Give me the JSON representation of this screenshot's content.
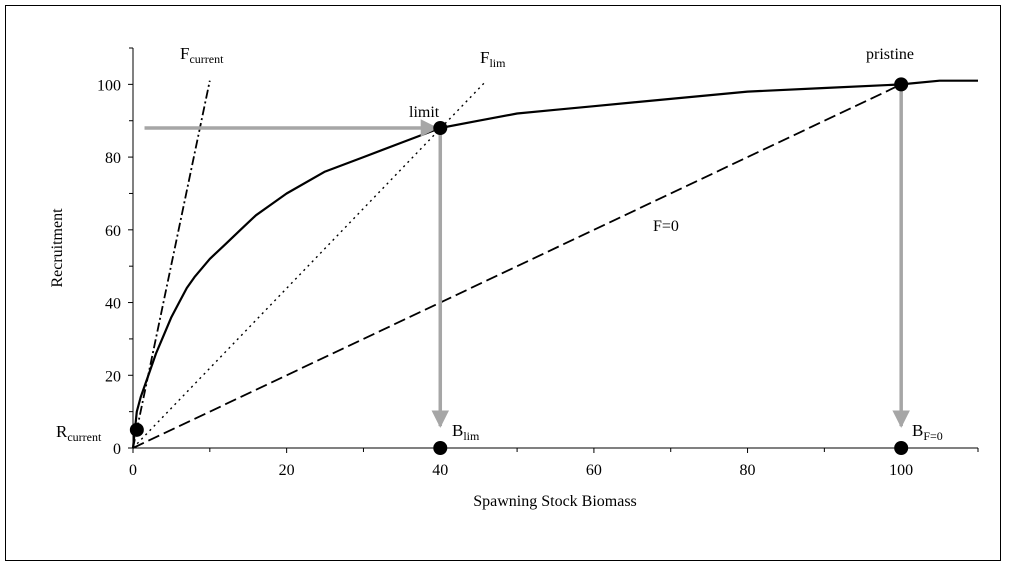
{
  "chart_data": {
    "type": "line",
    "xlabel": "Spawning Stock Biomass",
    "ylabel": "Recruitment",
    "xlim": [
      0,
      110
    ],
    "ylim": [
      0,
      110
    ],
    "x_ticks": [
      0,
      20,
      40,
      60,
      80,
      100
    ],
    "y_ticks": [
      0,
      20,
      40,
      60,
      80,
      100
    ],
    "grid": false,
    "legend": "none",
    "series": [
      {
        "name": "",
        "style": "solid",
        "points": [
          [
            0,
            0
          ],
          [
            0.5,
            10
          ],
          [
            1,
            14
          ],
          [
            2,
            20
          ],
          [
            3,
            26
          ],
          [
            4,
            31
          ],
          [
            5,
            36
          ],
          [
            6,
            40
          ],
          [
            7,
            44
          ],
          [
            8,
            47
          ],
          [
            10,
            52
          ],
          [
            12,
            56
          ],
          [
            14,
            60
          ],
          [
            16,
            64
          ],
          [
            18,
            67
          ],
          [
            20,
            70
          ],
          [
            25,
            76
          ],
          [
            30,
            80
          ],
          [
            35,
            84
          ],
          [
            40,
            88
          ],
          [
            45,
            90
          ],
          [
            50,
            92
          ],
          [
            55,
            93
          ],
          [
            60,
            94
          ],
          [
            65,
            95
          ],
          [
            70,
            96
          ],
          [
            80,
            98
          ],
          [
            90,
            99
          ],
          [
            100,
            100
          ],
          [
            105,
            101
          ],
          [
            110,
            101
          ]
        ]
      },
      {
        "name": "F=0",
        "style": "dashed",
        "points": [
          [
            0,
            0
          ],
          [
            100,
            100
          ]
        ]
      },
      {
        "name": "Flim",
        "style": "dotted",
        "points": [
          [
            0,
            0
          ],
          [
            46,
            101
          ]
        ]
      },
      {
        "name": "Fcurrent",
        "style": "dashdot",
        "points": [
          [
            0,
            0
          ],
          [
            10,
            101
          ]
        ]
      }
    ],
    "points": [
      {
        "id": "rcurrent",
        "x": 0.5,
        "y": 5
      },
      {
        "id": "limit",
        "x": 40,
        "y": 88
      },
      {
        "id": "pristine",
        "x": 100,
        "y": 100
      },
      {
        "id": "blim",
        "x": 40,
        "y": 0
      },
      {
        "id": "bf0",
        "x": 100,
        "y": 0
      }
    ],
    "arrows": [
      {
        "id": "recruit-arrow",
        "from": [
          1.5,
          88
        ],
        "to": [
          39.5,
          88
        ]
      },
      {
        "id": "blim-arrow",
        "from": [
          40,
          88
        ],
        "to": [
          40,
          6
        ]
      },
      {
        "id": "bf0-arrow",
        "from": [
          100,
          100
        ],
        "to": [
          100,
          6
        ]
      }
    ],
    "labels": {
      "fcurrent_main": "F",
      "fcurrent_sub": "current",
      "flim_main": "F",
      "flim_sub": "lim",
      "f0": "F=0",
      "limit": "limit",
      "pristine": "pristine",
      "rcurrent_main": "R",
      "rcurrent_sub": "current",
      "blim_main": "B",
      "blim_sub": "lim",
      "bf0_main": "B",
      "bf0_sub": "F=0"
    },
    "colors": {
      "arrow": "#a6a6a6",
      "line": "#000000"
    }
  }
}
